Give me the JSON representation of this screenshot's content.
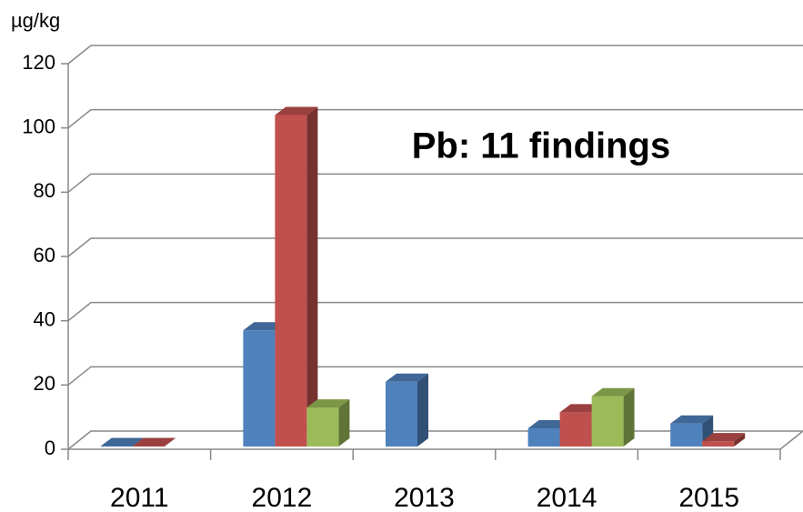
{
  "chart_data": {
    "type": "bar3d",
    "y_axis_label": "µg/kg",
    "annotation": "Pb: 11 findings",
    "categories": [
      "2011",
      "2012",
      "2013",
      "2014",
      "2015"
    ],
    "series": [
      {
        "color": "#4f81bd",
        "values": [
          1,
          37,
          21,
          6.5,
          8
        ]
      },
      {
        "color": "#c0504d",
        "values": [
          1,
          104,
          null,
          11.5,
          2.5
        ]
      },
      {
        "color": "#9bbb59",
        "values": [
          null,
          13,
          null,
          16.5,
          null
        ]
      }
    ],
    "ylim": [
      0,
      120
    ],
    "yticks": [
      0,
      20,
      40,
      60,
      80,
      100,
      120
    ],
    "grid": true
  }
}
